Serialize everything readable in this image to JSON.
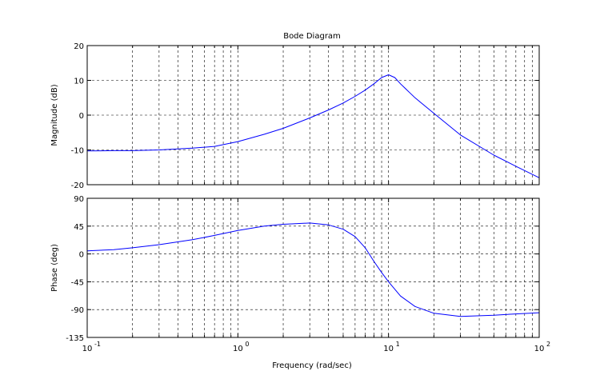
{
  "chart_data": [
    {
      "type": "line",
      "title": "Bode Diagram",
      "ylabel": "Magnitude (dB)",
      "xlabel": "",
      "xscale": "log",
      "xlim": [
        0.1,
        100
      ],
      "ylim": [
        -20,
        20
      ],
      "yticks": [
        -20,
        -10,
        0,
        10,
        20
      ],
      "ytick_labels": [
        "-20",
        "-10",
        "0",
        "10",
        "20"
      ],
      "grid": true,
      "color": "#0000ff",
      "series": [
        {
          "x": [
            0.1,
            0.15,
            0.2,
            0.3,
            0.5,
            0.7,
            1,
            1.5,
            2,
            3,
            4,
            5,
            6,
            7,
            8,
            9,
            10,
            11,
            12,
            15,
            20,
            30,
            50,
            70,
            100
          ],
          "y": [
            -10.3,
            -10.2,
            -10.2,
            -10.0,
            -9.5,
            -9.0,
            -7.6,
            -5.5,
            -3.8,
            -0.8,
            1.5,
            3.5,
            5.4,
            7.2,
            9.0,
            10.8,
            11.6,
            10.8,
            9.0,
            5.0,
            0.5,
            -5.7,
            -11.5,
            -14.7,
            -18.0
          ]
        }
      ]
    },
    {
      "type": "line",
      "title": "",
      "ylabel": "Phase (deg)",
      "xlabel": "Frequency  (rad/sec)",
      "xscale": "log",
      "xlim": [
        0.1,
        100
      ],
      "ylim": [
        -135,
        90
      ],
      "yticks": [
        -135,
        -90,
        -45,
        0,
        45,
        90
      ],
      "ytick_labels": [
        "-135",
        "-90",
        "-45",
        "0",
        "45",
        "90"
      ],
      "xticks": [
        0.1,
        1,
        10,
        100
      ],
      "xtick_labels": [
        [
          "10",
          "-1"
        ],
        [
          "10",
          "0"
        ],
        [
          "10",
          "1"
        ],
        [
          "10",
          "2"
        ]
      ],
      "grid": true,
      "color": "#0000ff",
      "series": [
        {
          "x": [
            0.1,
            0.15,
            0.2,
            0.3,
            0.5,
            0.7,
            1,
            1.5,
            2,
            3,
            4,
            5,
            6,
            7,
            8,
            9,
            10,
            12,
            15,
            20,
            30,
            50,
            70,
            100
          ],
          "y": [
            5,
            7,
            10,
            15,
            23,
            30,
            38,
            45,
            48,
            50,
            47,
            40,
            28,
            10,
            -12,
            -30,
            -45,
            -68,
            -85,
            -96,
            -101,
            -99,
            -97,
            -95
          ]
        }
      ]
    }
  ]
}
